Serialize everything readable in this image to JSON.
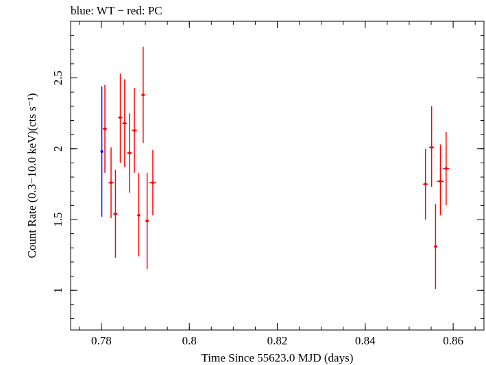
{
  "chart_data": {
    "type": "scatter",
    "title": "blue: WT − red: PC",
    "xlabel": "Time Since 55623.0 MJD (days)",
    "ylabel": "Count Rate (0.3−10.0 keV)(cts s⁻¹)",
    "xlim": [
      0.773,
      0.867
    ],
    "ylim": [
      0.72,
      2.9
    ],
    "x_ticks": [
      0.78,
      0.8,
      0.82,
      0.84,
      0.86
    ],
    "x_tick_labels": [
      "0.78",
      "0.8",
      "0.82",
      "0.84",
      "0.86"
    ],
    "y_ticks": [
      1,
      1.5,
      2,
      2.5
    ],
    "y_tick_labels": [
      "1",
      "1.5",
      "2",
      "2.5"
    ],
    "grid": false,
    "series": [
      {
        "name": "WT",
        "color": "#0000ff",
        "points": [
          {
            "x": 0.7801,
            "y": 1.98,
            "ylo": 1.52,
            "yhi": 2.44,
            "xerr": 0.0002
          }
        ]
      },
      {
        "name": "PC",
        "color": "#ff0000",
        "points": [
          {
            "x": 0.7808,
            "y": 2.14,
            "ylo": 1.83,
            "yhi": 2.45,
            "xerr": 0.0005
          },
          {
            "x": 0.7822,
            "y": 1.76,
            "ylo": 1.51,
            "yhi": 2.01,
            "xerr": 0.0006
          },
          {
            "x": 0.7832,
            "y": 1.54,
            "ylo": 1.23,
            "yhi": 1.85,
            "xerr": 0.0005
          },
          {
            "x": 0.7843,
            "y": 2.22,
            "ylo": 1.9,
            "yhi": 2.53,
            "xerr": 0.0005
          },
          {
            "x": 0.7853,
            "y": 2.18,
            "ylo": 1.87,
            "yhi": 2.49,
            "xerr": 0.0006
          },
          {
            "x": 0.7864,
            "y": 1.97,
            "ylo": 1.69,
            "yhi": 2.25,
            "xerr": 0.0006
          },
          {
            "x": 0.7875,
            "y": 2.13,
            "ylo": 1.83,
            "yhi": 2.43,
            "xerr": 0.0006
          },
          {
            "x": 0.7885,
            "y": 1.53,
            "ylo": 1.24,
            "yhi": 1.83,
            "xerr": 0.0004
          },
          {
            "x": 0.7895,
            "y": 2.38,
            "ylo": 2.04,
            "yhi": 2.72,
            "xerr": 0.0005
          },
          {
            "x": 0.7904,
            "y": 1.49,
            "ylo": 1.15,
            "yhi": 1.83,
            "xerr": 0.0004
          },
          {
            "x": 0.7917,
            "y": 1.76,
            "ylo": 1.53,
            "yhi": 1.99,
            "xerr": 0.0008
          },
          {
            "x": 0.8537,
            "y": 1.75,
            "ylo": 1.5,
            "yhi": 2.0,
            "xerr": 0.0006
          },
          {
            "x": 0.8551,
            "y": 2.01,
            "ylo": 1.73,
            "yhi": 2.3,
            "xerr": 0.0006
          },
          {
            "x": 0.856,
            "y": 1.31,
            "ylo": 1.01,
            "yhi": 1.61,
            "xerr": 0.0004
          },
          {
            "x": 0.8571,
            "y": 1.77,
            "ylo": 1.53,
            "yhi": 2.03,
            "xerr": 0.0008
          },
          {
            "x": 0.8584,
            "y": 1.86,
            "ylo": 1.6,
            "yhi": 2.12,
            "xerr": 0.0007
          }
        ]
      }
    ]
  }
}
